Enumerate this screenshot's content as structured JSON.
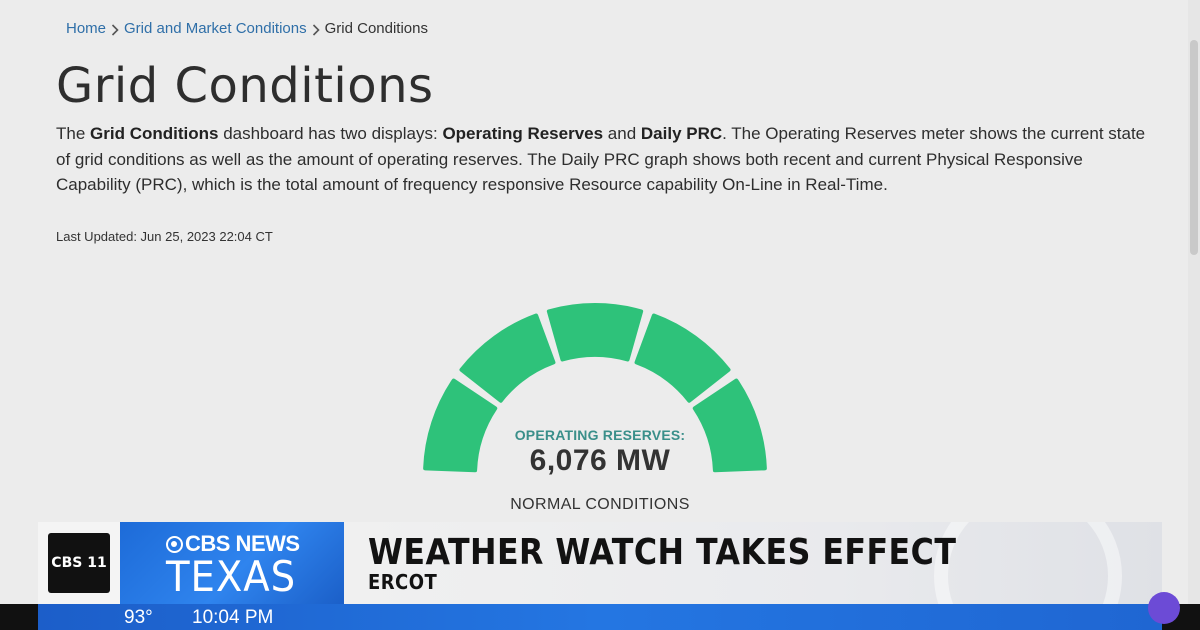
{
  "breadcrumb": {
    "items": [
      {
        "label": "Home"
      },
      {
        "label": "Grid and Market Conditions"
      }
    ],
    "current": "Grid Conditions"
  },
  "page": {
    "title": "Grid Conditions",
    "intro": {
      "t1": "The ",
      "b1": "Grid Conditions",
      "t2": " dashboard has two displays: ",
      "b2": "Operating Reserves",
      "t3": " and ",
      "b3": "Daily PRC",
      "t4": ". The Operating Reserves meter shows the current state of grid conditions as well as the amount of operating reserves. The Daily PRC graph shows both recent and current Physical Responsive Capability (PRC), which is the total amount of frequency responsive Resource capability On-Line in Real-Time."
    },
    "last_updated": "Last Updated: Jun 25, 2023 22:04 CT"
  },
  "gauge": {
    "label": "OPERATING RESERVES:",
    "value": "6,076 MW",
    "status": "NORMAL CONDITIONS",
    "color": "#2ec27a",
    "segments": 5,
    "active_segments": 5
  },
  "broadcast": {
    "station_logo": "CBS 11",
    "network_top": "CBS NEWS",
    "network_bottom": "TEXAS",
    "headline": "WEATHER WATCH TAKES EFFECT",
    "subhead": "ERCOT",
    "temperature": "93°",
    "time": "10:04 PM",
    "accent": "#1f6fdc"
  }
}
